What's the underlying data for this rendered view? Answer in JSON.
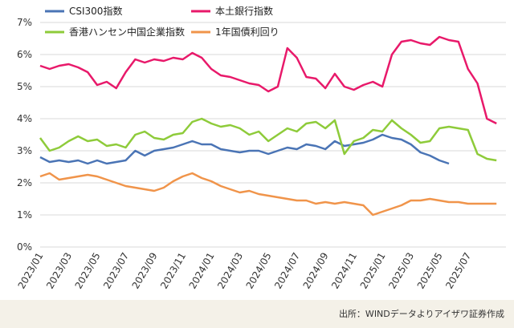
{
  "chart_data": {
    "type": "line",
    "title": "",
    "xlabel": "",
    "ylabel": "",
    "ylim": [
      0,
      7
    ],
    "yticks": [
      "0%",
      "1%",
      "2%",
      "3%",
      "4%",
      "5%",
      "6%",
      "7%"
    ],
    "xticks": [
      "2023/01",
      "2023/03",
      "2023/05",
      "2023/07",
      "2023/09",
      "2023/11",
      "2024/01",
      "2024/03",
      "2024/05",
      "2024/07",
      "2024/09",
      "2024/11",
      "2025/01",
      "2025/03",
      "2025/05",
      "2025/07"
    ],
    "grid": true,
    "legend_position": "top",
    "series": [
      {
        "name": "CSI300指数",
        "color": "#4a74b5",
        "points": [
          [
            0,
            2.8
          ],
          [
            0.5,
            2.65
          ],
          [
            1,
            2.7
          ],
          [
            1.5,
            2.65
          ],
          [
            2,
            2.7
          ],
          [
            2.5,
            2.6
          ],
          [
            3,
            2.7
          ],
          [
            3.5,
            2.6
          ],
          [
            4,
            2.65
          ],
          [
            4.5,
            2.7
          ],
          [
            5,
            3.0
          ],
          [
            5.5,
            2.85
          ],
          [
            6,
            3.0
          ],
          [
            6.5,
            3.05
          ],
          [
            7,
            3.1
          ],
          [
            7.5,
            3.2
          ],
          [
            8,
            3.3
          ],
          [
            8.5,
            3.2
          ],
          [
            9,
            3.2
          ],
          [
            9.5,
            3.05
          ],
          [
            10,
            3.0
          ],
          [
            10.5,
            2.95
          ],
          [
            11,
            3.0
          ],
          [
            11.5,
            3.0
          ],
          [
            12,
            2.9
          ],
          [
            12.5,
            3.0
          ],
          [
            13,
            3.1
          ],
          [
            13.5,
            3.05
          ],
          [
            14,
            3.2
          ],
          [
            14.5,
            3.15
          ],
          [
            15,
            3.05
          ],
          [
            15.5,
            3.3
          ],
          [
            16,
            3.15
          ],
          [
            16.5,
            3.2
          ],
          [
            17,
            3.25
          ],
          [
            17.5,
            3.35
          ],
          [
            18,
            3.5
          ],
          [
            18.5,
            3.4
          ],
          [
            19,
            3.35
          ],
          [
            19.5,
            3.2
          ],
          [
            20,
            2.95
          ],
          [
            20.5,
            2.85
          ],
          [
            21,
            2.7
          ],
          [
            21.5,
            2.6
          ]
        ]
      },
      {
        "name": "本土銀行指数",
        "color": "#e8196a",
        "points": [
          [
            0,
            5.65
          ],
          [
            0.5,
            5.55
          ],
          [
            1,
            5.65
          ],
          [
            1.5,
            5.7
          ],
          [
            2,
            5.6
          ],
          [
            2.5,
            5.45
          ],
          [
            3,
            5.05
          ],
          [
            3.5,
            5.15
          ],
          [
            4,
            4.95
          ],
          [
            4.5,
            5.45
          ],
          [
            5,
            5.85
          ],
          [
            5.5,
            5.75
          ],
          [
            6,
            5.85
          ],
          [
            6.5,
            5.8
          ],
          [
            7,
            5.9
          ],
          [
            7.5,
            5.85
          ],
          [
            8,
            6.05
          ],
          [
            8.5,
            5.9
          ],
          [
            9,
            5.55
          ],
          [
            9.5,
            5.35
          ],
          [
            10,
            5.3
          ],
          [
            10.5,
            5.2
          ],
          [
            11,
            5.1
          ],
          [
            11.5,
            5.05
          ],
          [
            12,
            4.85
          ],
          [
            12.5,
            5.0
          ],
          [
            13,
            6.2
          ],
          [
            13.5,
            5.9
          ],
          [
            14,
            5.3
          ],
          [
            14.5,
            5.25
          ],
          [
            15,
            4.95
          ],
          [
            15.5,
            5.4
          ],
          [
            16,
            5.0
          ],
          [
            16.5,
            4.9
          ],
          [
            17,
            5.05
          ],
          [
            17.5,
            5.15
          ],
          [
            18,
            5.0
          ],
          [
            18.5,
            6.0
          ],
          [
            19,
            6.4
          ],
          [
            19.5,
            6.45
          ],
          [
            20,
            6.35
          ],
          [
            20.5,
            6.3
          ],
          [
            21,
            6.55
          ],
          [
            21.5,
            6.45
          ],
          [
            22,
            6.4
          ],
          [
            22.5,
            5.55
          ],
          [
            23,
            5.1
          ],
          [
            23.5,
            4.0
          ],
          [
            24,
            3.85
          ]
        ]
      },
      {
        "name": "香港ハンセン中国企業指数",
        "color": "#8ecb3a",
        "points": [
          [
            0,
            3.4
          ],
          [
            0.5,
            3.0
          ],
          [
            1,
            3.1
          ],
          [
            1.5,
            3.3
          ],
          [
            2,
            3.45
          ],
          [
            2.5,
            3.3
          ],
          [
            3,
            3.35
          ],
          [
            3.5,
            3.15
          ],
          [
            4,
            3.2
          ],
          [
            4.5,
            3.1
          ],
          [
            5,
            3.5
          ],
          [
            5.5,
            3.6
          ],
          [
            6,
            3.4
          ],
          [
            6.5,
            3.35
          ],
          [
            7,
            3.5
          ],
          [
            7.5,
            3.55
          ],
          [
            8,
            3.9
          ],
          [
            8.5,
            4.0
          ],
          [
            9,
            3.85
          ],
          [
            9.5,
            3.75
          ],
          [
            10,
            3.8
          ],
          [
            10.5,
            3.7
          ],
          [
            11,
            3.5
          ],
          [
            11.5,
            3.6
          ],
          [
            12,
            3.3
          ],
          [
            12.5,
            3.5
          ],
          [
            13,
            3.7
          ],
          [
            13.5,
            3.6
          ],
          [
            14,
            3.85
          ],
          [
            14.5,
            3.9
          ],
          [
            15,
            3.7
          ],
          [
            15.5,
            3.95
          ],
          [
            16,
            2.9
          ],
          [
            16.5,
            3.3
          ],
          [
            17,
            3.4
          ],
          [
            17.5,
            3.65
          ],
          [
            18,
            3.6
          ],
          [
            18.5,
            3.95
          ],
          [
            19,
            3.7
          ],
          [
            19.5,
            3.5
          ],
          [
            20,
            3.25
          ],
          [
            20.5,
            3.3
          ],
          [
            21,
            3.7
          ],
          [
            21.5,
            3.75
          ],
          [
            22,
            3.7
          ],
          [
            22.5,
            3.65
          ],
          [
            23,
            2.9
          ],
          [
            23.5,
            2.75
          ],
          [
            24,
            2.7
          ]
        ]
      },
      {
        "name": "1年国債利回り",
        "color": "#f0944a",
        "points": [
          [
            0,
            2.2
          ],
          [
            0.5,
            2.3
          ],
          [
            1,
            2.1
          ],
          [
            1.5,
            2.15
          ],
          [
            2,
            2.2
          ],
          [
            2.5,
            2.25
          ],
          [
            3,
            2.2
          ],
          [
            3.5,
            2.1
          ],
          [
            4,
            2.0
          ],
          [
            4.5,
            1.9
          ],
          [
            5,
            1.85
          ],
          [
            5.5,
            1.8
          ],
          [
            6,
            1.75
          ],
          [
            6.5,
            1.85
          ],
          [
            7,
            2.05
          ],
          [
            7.5,
            2.2
          ],
          [
            8,
            2.3
          ],
          [
            8.5,
            2.15
          ],
          [
            9,
            2.05
          ],
          [
            9.5,
            1.9
          ],
          [
            10,
            1.8
          ],
          [
            10.5,
            1.7
          ],
          [
            11,
            1.75
          ],
          [
            11.5,
            1.65
          ],
          [
            12,
            1.6
          ],
          [
            12.5,
            1.55
          ],
          [
            13,
            1.5
          ],
          [
            13.5,
            1.45
          ],
          [
            14,
            1.45
          ],
          [
            14.5,
            1.35
          ],
          [
            15,
            1.4
          ],
          [
            15.5,
            1.35
          ],
          [
            16,
            1.4
          ],
          [
            16.5,
            1.35
          ],
          [
            17,
            1.3
          ],
          [
            17.5,
            1.0
          ],
          [
            18,
            1.1
          ],
          [
            18.5,
            1.2
          ],
          [
            19,
            1.3
          ],
          [
            19.5,
            1.45
          ],
          [
            20,
            1.45
          ],
          [
            20.5,
            1.5
          ],
          [
            21,
            1.45
          ],
          [
            21.5,
            1.4
          ],
          [
            22,
            1.4
          ],
          [
            22.5,
            1.35
          ],
          [
            23,
            1.35
          ],
          [
            23.5,
            1.35
          ],
          [
            24,
            1.35
          ]
        ]
      }
    ]
  },
  "footer": {
    "source": "出所：WINDデータよりアイザワ証券作成"
  }
}
